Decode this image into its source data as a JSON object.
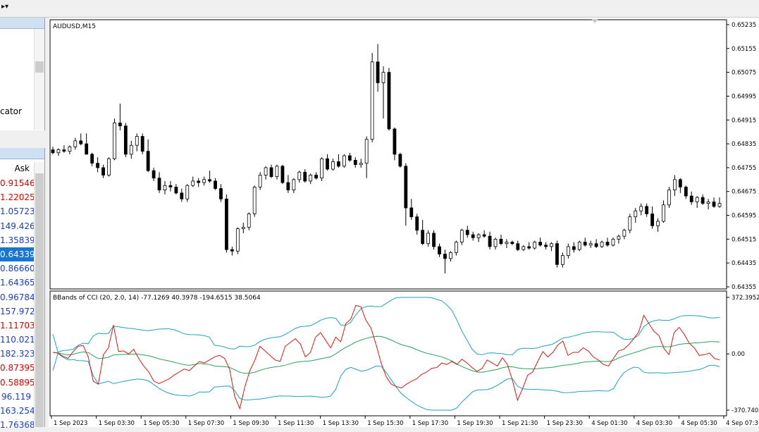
{
  "toolbar": {
    "dropdown_glyph": "▸▾"
  },
  "navigator": {
    "partial_item_label": "cator"
  },
  "market_watch": {
    "column_header": "Ask",
    "rows": [
      {
        "ask": "0.91546",
        "color": "red"
      },
      {
        "ask": "1.22025",
        "color": "red"
      },
      {
        "ask": "1.05723",
        "color": "blue"
      },
      {
        "ask": "149.426",
        "color": "blue"
      },
      {
        "ask": "1.35839",
        "color": "blue"
      },
      {
        "ask": "0.64339",
        "color": "blue",
        "selected": true
      },
      {
        "ask": "0.86660",
        "color": "blue"
      },
      {
        "ask": "1.64365",
        "color": "blue"
      },
      {
        "ask": "0.96784",
        "color": "blue"
      },
      {
        "ask": "157.972",
        "color": "blue"
      },
      {
        "ask": "1.11703",
        "color": "red"
      },
      {
        "ask": "110.021",
        "color": "blue"
      },
      {
        "ask": "182.323",
        "color": "blue"
      },
      {
        "ask": "0.87395",
        "color": "red"
      },
      {
        "ask": "0.58895",
        "color": "red"
      },
      {
        "ask": "96.119",
        "color": "blue"
      },
      {
        "ask": "163.254",
        "color": "blue"
      },
      {
        "ask": "1.76368",
        "color": "blue"
      }
    ]
  },
  "chart": {
    "symbol_label": "AUDUSD,M15",
    "indicator_label": "BBands of CCI (20, 2.0, 14) -77.1269 40.3978 -194.6515 38.5064",
    "price_axis": [
      "0.65235",
      "0.65155",
      "0.65075",
      "0.64995",
      "0.64915",
      "0.64835",
      "0.64755",
      "0.64675",
      "0.64595",
      "0.64515",
      "0.64435",
      "0.64355"
    ],
    "price_axis_values": [
      0.65235,
      0.65155,
      0.65075,
      0.64995,
      0.64915,
      0.64835,
      0.64755,
      0.64675,
      0.64595,
      0.64515,
      0.64435,
      0.64355
    ],
    "indicator_axis": [
      "372.3952",
      "0.00",
      "-370.7404"
    ],
    "indicator_axis_values": [
      372.3952,
      0,
      -370.7404
    ],
    "time_axis": [
      "1 Sep 2023",
      "1 Sep 03:30",
      "1 Sep 05:30",
      "1 Sep 07:30",
      "1 Sep 09:30",
      "1 Sep 11:30",
      "1 Sep 13:30",
      "1 Sep 15:30",
      "1 Sep 17:30",
      "1 Sep 19:30",
      "1 Sep 21:30",
      "1 Sep 23:30",
      "4 Sep 01:30",
      "4 Sep 03:30",
      "4 Sep 05:30",
      "4 Sep 07:3"
    ],
    "colors": {
      "bull": "#ffffff",
      "bear": "#000000",
      "cci": "#d81b1b",
      "band": "#1aa3c4",
      "mid": "#26a35a",
      "grid": "#000000"
    }
  },
  "chart_data": {
    "type": "candlestick",
    "title": "AUDUSD,M15",
    "ylim": [
      0.64355,
      0.65235
    ],
    "candles": [
      [
        0.64815,
        0.64825,
        0.648,
        0.64805
      ],
      [
        0.64805,
        0.6482,
        0.64795,
        0.64815
      ],
      [
        0.64815,
        0.6483,
        0.64805,
        0.6481
      ],
      [
        0.6481,
        0.6483,
        0.648,
        0.64825
      ],
      [
        0.64825,
        0.64855,
        0.64815,
        0.64845
      ],
      [
        0.64845,
        0.6487,
        0.6483,
        0.64835
      ],
      [
        0.64835,
        0.6487,
        0.648,
        0.648
      ],
      [
        0.648,
        0.64805,
        0.6476,
        0.6477
      ],
      [
        0.6477,
        0.6479,
        0.6474,
        0.64755
      ],
      [
        0.64755,
        0.64765,
        0.6472,
        0.6473
      ],
      [
        0.6473,
        0.6479,
        0.64725,
        0.64785
      ],
      [
        0.64785,
        0.6492,
        0.6478,
        0.64905
      ],
      [
        0.64905,
        0.6497,
        0.6488,
        0.64895
      ],
      [
        0.64895,
        0.64905,
        0.6479,
        0.648
      ],
      [
        0.648,
        0.64845,
        0.64785,
        0.6483
      ],
      [
        0.6483,
        0.6487,
        0.6481,
        0.6486
      ],
      [
        0.6486,
        0.6487,
        0.648,
        0.6481
      ],
      [
        0.6481,
        0.6485,
        0.6474,
        0.64745
      ],
      [
        0.64745,
        0.64755,
        0.6471,
        0.6472
      ],
      [
        0.6472,
        0.6474,
        0.6467,
        0.6468
      ],
      [
        0.6468,
        0.6471,
        0.64665,
        0.64695
      ],
      [
        0.64695,
        0.6471,
        0.64675,
        0.6469
      ],
      [
        0.6469,
        0.647,
        0.64665,
        0.6467
      ],
      [
        0.6467,
        0.64685,
        0.6464,
        0.6465
      ],
      [
        0.6465,
        0.647,
        0.6464,
        0.64695
      ],
      [
        0.64695,
        0.64725,
        0.6469,
        0.6471
      ],
      [
        0.6471,
        0.6472,
        0.6469,
        0.64705
      ],
      [
        0.64705,
        0.64725,
        0.64695,
        0.64715
      ],
      [
        0.64715,
        0.64745,
        0.64705,
        0.6471
      ],
      [
        0.6471,
        0.6472,
        0.6468,
        0.64685
      ],
      [
        0.64685,
        0.647,
        0.6464,
        0.6465
      ],
      [
        0.6465,
        0.64665,
        0.6447,
        0.6448
      ],
      [
        0.6448,
        0.6449,
        0.6446,
        0.64475
      ],
      [
        0.64475,
        0.64555,
        0.64465,
        0.6455
      ],
      [
        0.6455,
        0.6457,
        0.64535,
        0.64555
      ],
      [
        0.64555,
        0.64605,
        0.64545,
        0.646
      ],
      [
        0.646,
        0.64695,
        0.6459,
        0.6469
      ],
      [
        0.6469,
        0.6474,
        0.6468,
        0.6473
      ],
      [
        0.6473,
        0.6476,
        0.64715,
        0.64755
      ],
      [
        0.64755,
        0.64765,
        0.6472,
        0.64725
      ],
      [
        0.64725,
        0.64765,
        0.64715,
        0.6476
      ],
      [
        0.6476,
        0.64765,
        0.647,
        0.64705
      ],
      [
        0.64705,
        0.6473,
        0.6467,
        0.6468
      ],
      [
        0.6468,
        0.6472,
        0.6467,
        0.64715
      ],
      [
        0.64715,
        0.64745,
        0.64705,
        0.6474
      ],
      [
        0.6474,
        0.6475,
        0.64705,
        0.6471
      ],
      [
        0.6471,
        0.64735,
        0.647,
        0.6473
      ],
      [
        0.6473,
        0.6474,
        0.64715,
        0.6472
      ],
      [
        0.6472,
        0.6479,
        0.6471,
        0.64785
      ],
      [
        0.64785,
        0.648,
        0.64745,
        0.6475
      ],
      [
        0.6475,
        0.64785,
        0.64745,
        0.64775
      ],
      [
        0.64775,
        0.648,
        0.64755,
        0.6476
      ],
      [
        0.6476,
        0.648,
        0.64755,
        0.64795
      ],
      [
        0.64795,
        0.64805,
        0.64775,
        0.6478
      ],
      [
        0.6478,
        0.6479,
        0.64755,
        0.64765
      ],
      [
        0.64765,
        0.64785,
        0.64755,
        0.6477
      ],
      [
        0.6477,
        0.6486,
        0.6472,
        0.6485
      ],
      [
        0.6485,
        0.6514,
        0.6484,
        0.6511
      ],
      [
        0.6511,
        0.6517,
        0.6501,
        0.6504
      ],
      [
        0.6504,
        0.65095,
        0.6492,
        0.65075
      ],
      [
        0.65075,
        0.6509,
        0.6488,
        0.64885
      ],
      [
        0.64885,
        0.6489,
        0.6478,
        0.648
      ],
      [
        0.648,
        0.64805,
        0.64755,
        0.6476
      ],
      [
        0.6476,
        0.6477,
        0.6456,
        0.6462
      ],
      [
        0.6462,
        0.6465,
        0.6458,
        0.6459
      ],
      [
        0.6459,
        0.646,
        0.6453,
        0.64545
      ],
      [
        0.64545,
        0.6458,
        0.64495,
        0.645
      ],
      [
        0.645,
        0.64545,
        0.6449,
        0.64535
      ],
      [
        0.64535,
        0.64545,
        0.6448,
        0.6449
      ],
      [
        0.6449,
        0.645,
        0.64455,
        0.64465
      ],
      [
        0.64465,
        0.6448,
        0.644,
        0.6445
      ],
      [
        0.6445,
        0.64475,
        0.6444,
        0.6447
      ],
      [
        0.6447,
        0.6451,
        0.6446,
        0.64505
      ],
      [
        0.64505,
        0.6455,
        0.64495,
        0.64545
      ],
      [
        0.64545,
        0.6456,
        0.6452,
        0.6453
      ],
      [
        0.6453,
        0.6454,
        0.6451,
        0.6452
      ],
      [
        0.6452,
        0.64535,
        0.64505,
        0.6453
      ],
      [
        0.6453,
        0.64545,
        0.6452,
        0.64525
      ],
      [
        0.64525,
        0.6454,
        0.6448,
        0.6449
      ],
      [
        0.6449,
        0.6452,
        0.6448,
        0.64515
      ],
      [
        0.64515,
        0.6453,
        0.64495,
        0.645
      ],
      [
        0.645,
        0.64515,
        0.64485,
        0.64505
      ],
      [
        0.64505,
        0.6451,
        0.64495,
        0.645
      ],
      [
        0.645,
        0.6451,
        0.64475,
        0.6448
      ],
      [
        0.6448,
        0.64495,
        0.64475,
        0.6449
      ],
      [
        0.6449,
        0.64505,
        0.6448,
        0.64485
      ],
      [
        0.64485,
        0.6451,
        0.6448,
        0.64505
      ],
      [
        0.64505,
        0.6452,
        0.6449,
        0.64495
      ],
      [
        0.64495,
        0.64505,
        0.6448,
        0.6449
      ],
      [
        0.6449,
        0.64505,
        0.64475,
        0.645
      ],
      [
        0.645,
        0.6451,
        0.6442,
        0.6443
      ],
      [
        0.6443,
        0.6447,
        0.6442,
        0.6446
      ],
      [
        0.6446,
        0.645,
        0.6445,
        0.6449
      ],
      [
        0.6449,
        0.64505,
        0.6447,
        0.6448
      ],
      [
        0.6448,
        0.6451,
        0.64475,
        0.64505
      ],
      [
        0.64505,
        0.6452,
        0.6449,
        0.64495
      ],
      [
        0.64495,
        0.6451,
        0.64485,
        0.645
      ],
      [
        0.645,
        0.64515,
        0.64485,
        0.6449
      ],
      [
        0.6449,
        0.6451,
        0.64485,
        0.64505
      ],
      [
        0.64505,
        0.6452,
        0.6449,
        0.64495
      ],
      [
        0.64495,
        0.6452,
        0.6449,
        0.64515
      ],
      [
        0.64515,
        0.6453,
        0.645,
        0.64525
      ],
      [
        0.64525,
        0.6455,
        0.64515,
        0.64545
      ],
      [
        0.64545,
        0.646,
        0.64535,
        0.6459
      ],
      [
        0.6459,
        0.6462,
        0.6457,
        0.6461
      ],
      [
        0.6461,
        0.64635,
        0.64595,
        0.64625
      ],
      [
        0.64625,
        0.64635,
        0.6459,
        0.646
      ],
      [
        0.646,
        0.64625,
        0.6455,
        0.6456
      ],
      [
        0.6456,
        0.64585,
        0.6454,
        0.64575
      ],
      [
        0.64575,
        0.64645,
        0.6457,
        0.6463
      ],
      [
        0.6463,
        0.6469,
        0.6462,
        0.6468
      ],
      [
        0.6468,
        0.6473,
        0.6466,
        0.64715
      ],
      [
        0.64715,
        0.6472,
        0.6467,
        0.6469
      ],
      [
        0.6469,
        0.64695,
        0.6465,
        0.6466
      ],
      [
        0.6466,
        0.64675,
        0.6463,
        0.6464
      ],
      [
        0.6464,
        0.6466,
        0.6462,
        0.64655
      ],
      [
        0.64655,
        0.64665,
        0.6463,
        0.64635
      ],
      [
        0.64635,
        0.6465,
        0.64615,
        0.6464
      ],
      [
        0.6464,
        0.64655,
        0.6462,
        0.64625
      ],
      [
        0.64625,
        0.64655,
        0.6462,
        0.64635
      ]
    ],
    "indicator": {
      "name": "BBands of CCI (20, 2.0, 14)",
      "ylim": [
        -370.7404,
        372.3952
      ],
      "cci": [
        10,
        5,
        -15,
        -30,
        15,
        50,
        55,
        -20,
        -180,
        -200,
        -5,
        40,
        190,
        15,
        20,
        0,
        30,
        -30,
        -80,
        -120,
        -180,
        -195,
        -180,
        -165,
        -140,
        -120,
        -100,
        -110,
        -80,
        -50,
        -60,
        -40,
        -20,
        -10,
        -30,
        -100,
        -280,
        -360,
        -220,
        -110,
        -40,
        50,
        20,
        -10,
        -40,
        -50,
        50,
        75,
        100,
        65,
        -20,
        10,
        110,
        140,
        90,
        40,
        110,
        80,
        200,
        230,
        320,
        310,
        220,
        170,
        60,
        -60,
        -150,
        -200,
        -215,
        -225,
        -200,
        -180,
        -165,
        -135,
        -120,
        -95,
        -90,
        -60,
        -70,
        -50,
        -70,
        -35,
        -60,
        -90,
        -115,
        -95,
        -40,
        -60,
        -80,
        -25,
        -70,
        -175,
        -305,
        -230,
        -140,
        -120,
        -50,
        15,
        -20,
        10,
        60,
        85,
        -10,
        10,
        10,
        40,
        20,
        -20,
        -40,
        -70,
        -80,
        -30,
        20,
        30,
        60,
        100,
        145,
        255,
        200,
        150,
        120,
        35,
        -5,
        140,
        175,
        130,
        70,
        40,
        -10,
        -5,
        5,
        -30,
        -40
      ]
    }
  }
}
